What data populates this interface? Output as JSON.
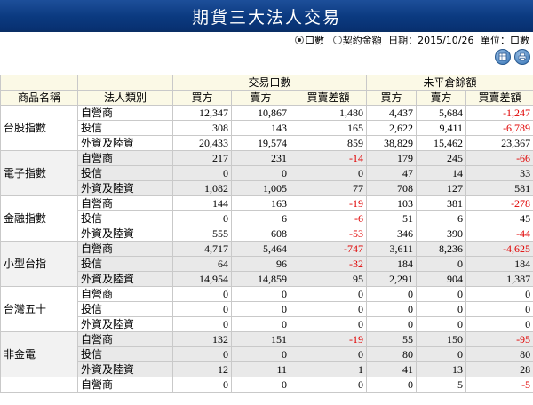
{
  "header": {
    "title": "期貨三大法人交易"
  },
  "options": {
    "opt1": "口數",
    "opt2": "契約金額",
    "date": "日期：2015/10/26",
    "unit": "單位：口數"
  },
  "table": {
    "group_headers": [
      "交易口數",
      "未平倉餘額"
    ],
    "columns": [
      "商品名稱",
      "法人類別",
      "買方",
      "賣方",
      "買賣差額",
      "買方",
      "賣方",
      "買賣差額"
    ],
    "groups": [
      {
        "name": "台股指數",
        "rows": [
          {
            "type": "自營商",
            "v": [
              "12,347",
              "10,867",
              "1,480",
              "4,437",
              "5,684",
              "-1,247"
            ]
          },
          {
            "type": "投信",
            "v": [
              "308",
              "143",
              "165",
              "2,622",
              "9,411",
              "-6,789"
            ]
          },
          {
            "type": "外資及陸資",
            "v": [
              "20,433",
              "19,574",
              "859",
              "38,829",
              "15,462",
              "23,367"
            ]
          }
        ]
      },
      {
        "name": "電子指數",
        "rows": [
          {
            "type": "自營商",
            "v": [
              "217",
              "231",
              "-14",
              "179",
              "245",
              "-66"
            ]
          },
          {
            "type": "投信",
            "v": [
              "0",
              "0",
              "0",
              "47",
              "14",
              "33"
            ]
          },
          {
            "type": "外資及陸資",
            "v": [
              "1,082",
              "1,005",
              "77",
              "708",
              "127",
              "581"
            ]
          }
        ]
      },
      {
        "name": "金融指數",
        "rows": [
          {
            "type": "自營商",
            "v": [
              "144",
              "163",
              "-19",
              "103",
              "381",
              "-278"
            ]
          },
          {
            "type": "投信",
            "v": [
              "0",
              "6",
              "-6",
              "51",
              "6",
              "45"
            ]
          },
          {
            "type": "外資及陸資",
            "v": [
              "555",
              "608",
              "-53",
              "346",
              "390",
              "-44"
            ]
          }
        ]
      },
      {
        "name": "小型台指",
        "rows": [
          {
            "type": "自營商",
            "v": [
              "4,717",
              "5,464",
              "-747",
              "3,611",
              "8,236",
              "-4,625"
            ]
          },
          {
            "type": "投信",
            "v": [
              "64",
              "96",
              "-32",
              "184",
              "0",
              "184"
            ]
          },
          {
            "type": "外資及陸資",
            "v": [
              "14,954",
              "14,859",
              "95",
              "2,291",
              "904",
              "1,387"
            ]
          }
        ]
      },
      {
        "name": "台灣五十",
        "rows": [
          {
            "type": "自營商",
            "v": [
              "0",
              "0",
              "0",
              "0",
              "0",
              "0"
            ]
          },
          {
            "type": "投信",
            "v": [
              "0",
              "0",
              "0",
              "0",
              "0",
              "0"
            ]
          },
          {
            "type": "外資及陸資",
            "v": [
              "0",
              "0",
              "0",
              "0",
              "0",
              "0"
            ]
          }
        ]
      },
      {
        "name": "非金電",
        "rows": [
          {
            "type": "自營商",
            "v": [
              "132",
              "151",
              "-19",
              "55",
              "150",
              "-95"
            ]
          },
          {
            "type": "投信",
            "v": [
              "0",
              "0",
              "0",
              "80",
              "0",
              "80"
            ]
          },
          {
            "type": "外資及陸資",
            "v": [
              "12",
              "11",
              "1",
              "41",
              "13",
              "28"
            ]
          }
        ]
      },
      {
        "name": "",
        "rows": [
          {
            "type": "自營商",
            "v": [
              "0",
              "0",
              "0",
              "0",
              "5",
              "-5"
            ]
          }
        ]
      }
    ]
  },
  "colors": {
    "title_bg": "#0b3a80",
    "negative": "#e00000",
    "header_bg": "#fbf9e6",
    "alt_row": "#e9e9e9"
  },
  "icons": [
    "excel-export-icon",
    "print-icon"
  ]
}
